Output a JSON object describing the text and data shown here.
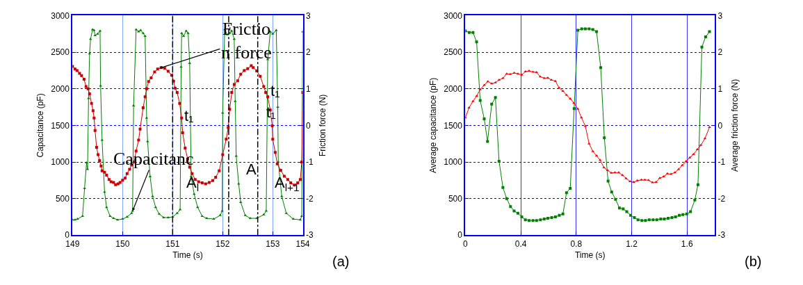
{
  "chart_data": [
    {
      "type": "line",
      "xlabel": "Time (s)",
      "ylabel": "Capacitance (pF)",
      "y2label": "Friction force (N)",
      "xlim": [
        149,
        153.6
      ],
      "xticks": [
        149,
        150,
        151,
        152,
        153,
        {
          "value": 153.6,
          "label": "154"
        }
      ],
      "ylim": [
        0,
        3000
      ],
      "yticks": [
        0,
        500,
        1000,
        1500,
        2000,
        2500,
        3000
      ],
      "y2lim": [
        -3,
        3
      ],
      "y2ticks": [
        -3,
        -2,
        -1,
        0,
        1,
        2,
        3
      ],
      "grid": true,
      "series": [
        {
          "color": "#008000",
          "marker": "triangle",
          "x": [
            149.0,
            149.05,
            149.1,
            149.2,
            149.24,
            149.28,
            149.3,
            149.32,
            149.34,
            149.36,
            149.4,
            149.43,
            149.45,
            149.5,
            149.55,
            149.56,
            149.59,
            149.64,
            149.68,
            149.75,
            149.82,
            149.9,
            150.0,
            150.09,
            150.18,
            150.2,
            150.22,
            150.27,
            150.32,
            150.36,
            150.41,
            150.45,
            150.48,
            150.5,
            150.55,
            150.6,
            150.66,
            150.73,
            150.82,
            150.91,
            151.0,
            151.09,
            151.15,
            151.17,
            151.18,
            151.22,
            151.27,
            151.31,
            151.34,
            151.37,
            151.43,
            151.5,
            151.59,
            151.68,
            151.82,
            151.95,
            151.99,
            152.0,
            152.04,
            152.09,
            152.14,
            152.18,
            152.23,
            152.25,
            152.27,
            152.32,
            152.36,
            152.45,
            152.55,
            152.68,
            152.82,
            152.87,
            152.9,
            152.95,
            153.0,
            153.07,
            153.1,
            153.11,
            153.18,
            153.27,
            153.41,
            153.55,
            153.58,
            153.6
          ],
          "values": [
            210,
            210,
            220,
            260,
            640,
            990,
            900,
            1870,
            2480,
            2680,
            2810,
            2800,
            2730,
            2750,
            2790,
            2040,
            1300,
            590,
            380,
            260,
            230,
            210,
            220,
            250,
            300,
            330,
            1770,
            2810,
            2780,
            2800,
            2760,
            2720,
            1600,
            1280,
            800,
            530,
            380,
            290,
            240,
            240,
            250,
            300,
            350,
            2300,
            2760,
            2720,
            2790,
            2760,
            2350,
            800,
            560,
            380,
            260,
            230,
            220,
            270,
            330,
            1670,
            2810,
            2740,
            2760,
            2790,
            2680,
            1830,
            1080,
            700,
            450,
            270,
            230,
            230,
            280,
            330,
            2400,
            2780,
            2750,
            2800,
            1750,
            1000,
            530,
            300,
            220,
            210,
            260,
            2780
          ]
        },
        {
          "color": "#cc0000",
          "marker": "square",
          "axis": "y2",
          "x": [
            149.0,
            149.05,
            149.09,
            149.14,
            149.18,
            149.23,
            149.27,
            149.31,
            149.34,
            149.38,
            149.41,
            149.43,
            149.45,
            149.48,
            149.51,
            149.54,
            149.57,
            149.59,
            149.64,
            149.68,
            149.73,
            149.77,
            149.82,
            149.86,
            149.91,
            149.95,
            150.0,
            150.05,
            150.09,
            150.14,
            150.18,
            150.23,
            150.27,
            150.32,
            150.35,
            150.41,
            150.45,
            150.48,
            150.52,
            150.57,
            150.64,
            150.7,
            150.77,
            150.84,
            150.91,
            150.98,
            151.02,
            151.05,
            151.09,
            151.14,
            151.18,
            151.2,
            151.25,
            151.3,
            151.34,
            151.39,
            151.45,
            151.52,
            151.59,
            151.66,
            151.73,
            151.8,
            151.86,
            151.93,
            152.0,
            152.07,
            152.11,
            152.14,
            152.18,
            152.23,
            152.3,
            152.36,
            152.43,
            152.5,
            152.57,
            152.61,
            152.68,
            152.75,
            152.82,
            152.86,
            152.9,
            152.95,
            152.99,
            153.0,
            153.05,
            153.09,
            153.16,
            153.23,
            153.3,
            153.36,
            153.43,
            153.5,
            153.55,
            153.58,
            153.6
          ],
          "values": [
            1.61,
            1.54,
            1.5,
            1.42,
            1.36,
            1.26,
            1.06,
            1.0,
            0.86,
            0.6,
            0.4,
            0.2,
            -0.14,
            -0.6,
            -0.8,
            -0.96,
            -1.11,
            -1.24,
            -1.28,
            -1.36,
            -1.48,
            -1.54,
            -1.56,
            -1.62,
            -1.6,
            -1.56,
            -1.5,
            -1.44,
            -1.32,
            -1.2,
            -1.08,
            -1.0,
            -0.7,
            -0.4,
            -0.1,
            0.48,
            0.78,
            1.0,
            1.2,
            1.3,
            1.46,
            1.54,
            1.58,
            1.56,
            1.48,
            1.37,
            1.21,
            1.02,
            0.9,
            0.6,
            0.2,
            -0.2,
            -0.62,
            -0.92,
            -1.14,
            -1.32,
            -1.48,
            -1.54,
            -1.57,
            -1.6,
            -1.56,
            -1.51,
            -1.42,
            -1.24,
            -0.8,
            -0.38,
            -0.06,
            0.44,
            0.9,
            1.12,
            1.22,
            1.4,
            1.5,
            1.55,
            1.63,
            1.58,
            1.49,
            1.34,
            1.06,
            0.9,
            0.78,
            0.42,
            -0.01,
            -0.38,
            -0.74,
            -1.05,
            -1.23,
            -1.39,
            -1.48,
            -1.57,
            -1.63,
            -1.57,
            -1.48,
            -1.0,
            0.9
          ]
        }
      ],
      "ref_lines": [
        {
          "axis": "x",
          "value": 151,
          "color": "#000000",
          "line_style": "dashed"
        },
        {
          "axis": "x",
          "value": 152.12,
          "color": "#000000",
          "line_style": "dashed"
        },
        {
          "axis": "x",
          "value": 152.7,
          "color": "#000000",
          "line_style": "dashed"
        }
      ],
      "annotations": [
        {
          "text": "Frictio\nn force",
          "x": 150.735,
          "y": 2280
        },
        {
          "text": "Capacitanc",
          "x": 150.2,
          "y": 330
        },
        "t₁",
        "t₁",
        "t₁",
        "A",
        "A$_{l}$",
        "A$_{l+1}$",
        "(a)"
      ]
    },
    {
      "type": "line",
      "xlabel": "Time (s)",
      "ylabel": "Average capacitance (pF)",
      "y2label": "Average friction force (N)",
      "xlim": [
        0,
        1.8
      ],
      "xticks": [
        0,
        0.4,
        0.8,
        1.2,
        1.6
      ],
      "ylim": [
        0,
        3000
      ],
      "yticks": [
        0,
        500,
        1000,
        1500,
        2000,
        2500,
        3000
      ],
      "y2lim": [
        -3,
        3
      ],
      "y2ticks": [
        -3,
        -2,
        -1,
        0,
        1,
        2,
        3
      ],
      "grid": true,
      "series": [
        {
          "color": "#008000",
          "marker": "square",
          "x": [
            0,
            0.028,
            0.055,
            0.081,
            0.107,
            0.136,
            0.16,
            0.19,
            0.217,
            0.243,
            0.271,
            0.298,
            0.326,
            0.352,
            0.379,
            0.407,
            0.433,
            0.46,
            0.488,
            0.514,
            0.542,
            0.569,
            0.595,
            0.623,
            0.65,
            0.678,
            0.704,
            0.73,
            0.757,
            0.785,
            0.812,
            0.84,
            0.866,
            0.893,
            0.92,
            0.947,
            0.977,
            1.003,
            1.03,
            1.056,
            1.084,
            1.112,
            1.139,
            1.165,
            1.193,
            1.22,
            1.246,
            1.274,
            1.3,
            1.327,
            1.355,
            1.382,
            1.41,
            1.436,
            1.463,
            1.491,
            1.517,
            1.544,
            1.57,
            1.598,
            1.625,
            1.656,
            1.679,
            1.707,
            1.734,
            1.762
          ],
          "values": [
            2790,
            2770,
            2770,
            2640,
            1840,
            1590,
            1280,
            1790,
            1880,
            1010,
            650,
            500,
            390,
            330,
            300,
            250,
            210,
            200,
            200,
            200,
            210,
            220,
            230,
            240,
            250,
            270,
            290,
            580,
            640,
            1730,
            2800,
            2820,
            2820,
            2820,
            2810,
            2780,
            2290,
            1330,
            740,
            590,
            490,
            370,
            360,
            320,
            270,
            240,
            210,
            200,
            200,
            210,
            210,
            210,
            220,
            220,
            230,
            240,
            250,
            270,
            280,
            290,
            320,
            480,
            690,
            2570,
            2710,
            2780
          ]
        },
        {
          "color": "#ff0000",
          "marker": "triangle",
          "axis": "y2",
          "x": [
            0,
            0.026,
            0.055,
            0.081,
            0.107,
            0.136,
            0.162,
            0.19,
            0.217,
            0.243,
            0.271,
            0.298,
            0.324,
            0.352,
            0.379,
            0.407,
            0.433,
            0.46,
            0.488,
            0.514,
            0.54,
            0.569,
            0.595,
            0.621,
            0.65,
            0.676,
            0.704,
            0.73,
            0.757,
            0.783,
            0.812,
            0.838,
            0.866,
            0.893,
            0.92,
            0.947,
            0.972,
            1.0,
            1.026,
            1.053,
            1.079,
            1.107,
            1.134,
            1.16,
            1.188,
            1.215,
            1.241,
            1.27,
            1.296,
            1.322,
            1.35,
            1.377,
            1.403,
            1.431,
            1.458,
            1.484,
            1.512,
            1.539,
            1.565,
            1.593,
            1.62,
            1.646,
            1.674,
            1.7,
            1.729,
            1.762
          ],
          "values": [
            0.21,
            0.48,
            0.66,
            0.8,
            0.98,
            1.1,
            1.2,
            1.14,
            1.17,
            1.24,
            1.29,
            1.41,
            1.4,
            1.43,
            1.41,
            1.38,
            1.47,
            1.49,
            1.46,
            1.45,
            1.33,
            1.29,
            1.3,
            1.24,
            1.21,
            1.03,
            0.94,
            0.83,
            0.73,
            0.61,
            0.45,
            0.21,
            -0.02,
            -0.5,
            -0.71,
            -0.83,
            -0.95,
            -1.15,
            -1.23,
            -1.3,
            -1.29,
            -1.29,
            -1.36,
            -1.45,
            -1.53,
            -1.55,
            -1.51,
            -1.49,
            -1.49,
            -1.5,
            -1.56,
            -1.55,
            -1.44,
            -1.4,
            -1.32,
            -1.33,
            -1.29,
            -1.2,
            -1.09,
            -0.98,
            -0.88,
            -0.79,
            -0.66,
            -0.54,
            -0.36,
            -0.05
          ]
        }
      ],
      "annotations": [
        "(b)"
      ]
    }
  ]
}
